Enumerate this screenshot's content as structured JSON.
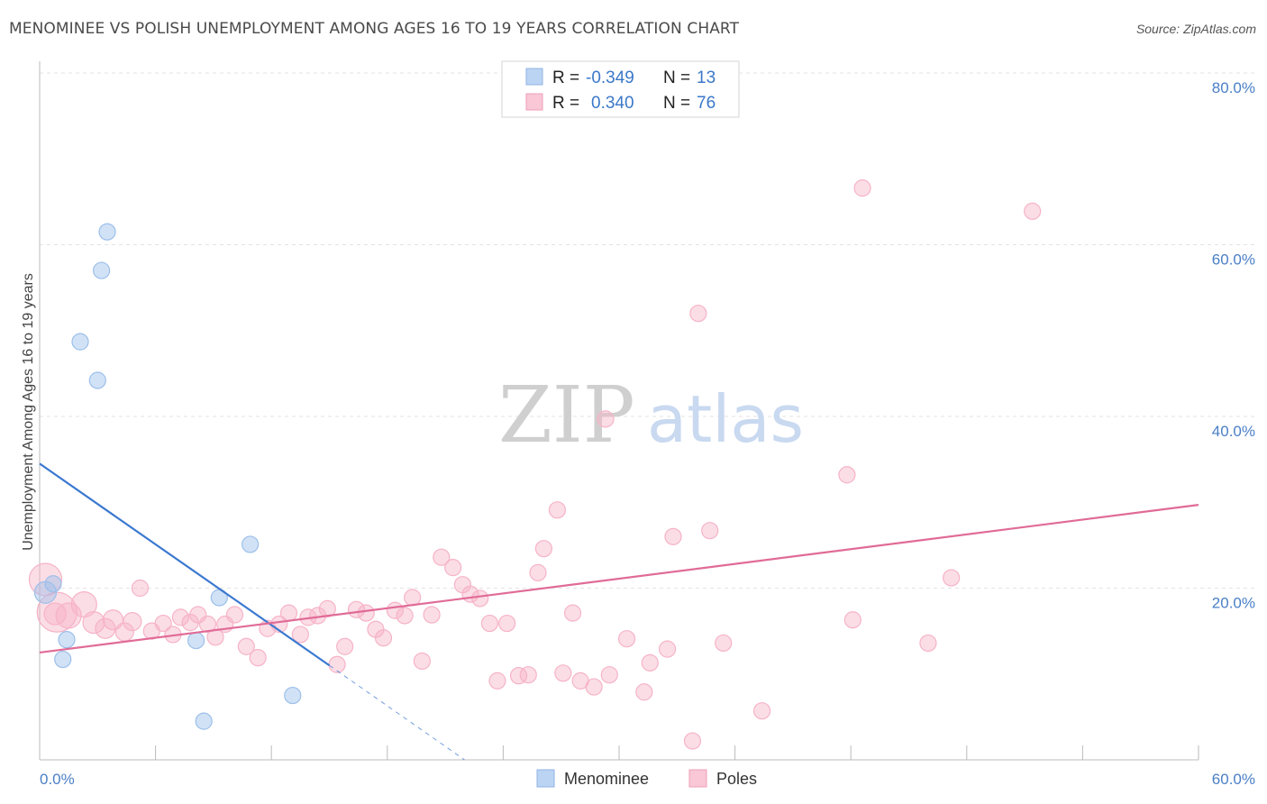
{
  "chart_data": {
    "type": "scatter",
    "title": "MENOMINEE VS POLISH UNEMPLOYMENT AMONG AGES 16 TO 19 YEARS CORRELATION CHART",
    "source": "Source: ZipAtlas.com",
    "xlabel": "",
    "ylabel": "Unemployment Among Ages 16 to 19 years",
    "xlim": [
      0,
      60
    ],
    "ylim": [
      0,
      80
    ],
    "x_tick_labels": [
      "0.0%",
      "60.0%"
    ],
    "y_tick_labels": [
      "20.0%",
      "40.0%",
      "60.0%",
      "80.0%"
    ],
    "y_ticks": [
      20,
      40,
      60,
      80
    ],
    "watermark": {
      "zip": "ZIP",
      "atlas": "atlas"
    },
    "stats_legend": [
      {
        "r_label": "R =",
        "r_value": "-0.349",
        "n_label": "N =",
        "n_value": "13"
      },
      {
        "r_label": "R =",
        "r_value": "0.340",
        "n_label": "N =",
        "n_value": "76"
      }
    ],
    "series": [
      {
        "name": "Menominee",
        "color": "#9bbfea",
        "line_color": "#3a78d0",
        "trend": {
          "x0": 0,
          "y0": 34.5,
          "x1": 15.0,
          "y1": 11.0,
          "dash_to_x": 22.0,
          "dash_to_y": 0
        },
        "points": [
          {
            "x": 0.3,
            "y": 19.5,
            "s": 12
          },
          {
            "x": 0.7,
            "y": 20.5,
            "s": 9
          },
          {
            "x": 1.4,
            "y": 14.0,
            "s": 9
          },
          {
            "x": 1.2,
            "y": 11.7,
            "s": 9
          },
          {
            "x": 2.1,
            "y": 48.7,
            "s": 9
          },
          {
            "x": 3.0,
            "y": 44.2,
            "s": 9
          },
          {
            "x": 3.2,
            "y": 57.0,
            "s": 9
          },
          {
            "x": 3.5,
            "y": 61.5,
            "s": 9
          },
          {
            "x": 8.1,
            "y": 13.9,
            "s": 9
          },
          {
            "x": 8.5,
            "y": 4.5,
            "s": 9
          },
          {
            "x": 9.3,
            "y": 18.9,
            "s": 9
          },
          {
            "x": 10.9,
            "y": 25.1,
            "s": 9
          },
          {
            "x": 13.1,
            "y": 7.5,
            "s": 9
          }
        ]
      },
      {
        "name": "Poles",
        "color": "#f6b3c7",
        "line_color": "#e06b96",
        "trend": {
          "x0": 0,
          "y0": 12.5,
          "x1": 60,
          "y1": 29.7
        },
        "points": [
          {
            "x": 0.3,
            "y": 21.0,
            "s": 18
          },
          {
            "x": 0.9,
            "y": 17.2,
            "s": 22
          },
          {
            "x": 1.5,
            "y": 16.8,
            "s": 14
          },
          {
            "x": 2.3,
            "y": 18.1,
            "s": 14
          },
          {
            "x": 2.8,
            "y": 16.0,
            "s": 12
          },
          {
            "x": 3.4,
            "y": 15.3,
            "s": 11
          },
          {
            "x": 3.8,
            "y": 16.3,
            "s": 11
          },
          {
            "x": 4.4,
            "y": 14.9,
            "s": 10
          },
          {
            "x": 4.8,
            "y": 16.1,
            "s": 10
          },
          {
            "x": 5.2,
            "y": 20.0,
            "s": 9
          },
          {
            "x": 5.8,
            "y": 15.0,
            "s": 9
          },
          {
            "x": 6.4,
            "y": 15.9,
            "s": 9
          },
          {
            "x": 6.9,
            "y": 14.6,
            "s": 9
          },
          {
            "x": 7.3,
            "y": 16.6,
            "s": 9
          },
          {
            "x": 7.8,
            "y": 16.0,
            "s": 9
          },
          {
            "x": 8.2,
            "y": 16.9,
            "s": 9
          },
          {
            "x": 8.7,
            "y": 15.8,
            "s": 9
          },
          {
            "x": 9.1,
            "y": 14.3,
            "s": 9
          },
          {
            "x": 9.6,
            "y": 15.8,
            "s": 9
          },
          {
            "x": 10.1,
            "y": 16.9,
            "s": 9
          },
          {
            "x": 10.7,
            "y": 13.2,
            "s": 9
          },
          {
            "x": 11.3,
            "y": 11.9,
            "s": 9
          },
          {
            "x": 11.8,
            "y": 15.3,
            "s": 9
          },
          {
            "x": 12.4,
            "y": 15.8,
            "s": 9
          },
          {
            "x": 12.9,
            "y": 17.1,
            "s": 9
          },
          {
            "x": 13.5,
            "y": 14.6,
            "s": 9
          },
          {
            "x": 13.9,
            "y": 16.6,
            "s": 9
          },
          {
            "x": 14.4,
            "y": 16.8,
            "s": 9
          },
          {
            "x": 14.9,
            "y": 17.6,
            "s": 9
          },
          {
            "x": 15.4,
            "y": 11.1,
            "s": 9
          },
          {
            "x": 15.8,
            "y": 13.2,
            "s": 9
          },
          {
            "x": 16.4,
            "y": 17.5,
            "s": 9
          },
          {
            "x": 16.9,
            "y": 17.1,
            "s": 9
          },
          {
            "x": 17.4,
            "y": 15.2,
            "s": 9
          },
          {
            "x": 17.8,
            "y": 14.2,
            "s": 9
          },
          {
            "x": 18.4,
            "y": 17.4,
            "s": 9
          },
          {
            "x": 18.9,
            "y": 16.8,
            "s": 9
          },
          {
            "x": 19.3,
            "y": 18.9,
            "s": 9
          },
          {
            "x": 19.8,
            "y": 11.5,
            "s": 9
          },
          {
            "x": 20.3,
            "y": 16.9,
            "s": 9
          },
          {
            "x": 20.8,
            "y": 23.6,
            "s": 9
          },
          {
            "x": 21.4,
            "y": 22.4,
            "s": 9
          },
          {
            "x": 21.9,
            "y": 20.4,
            "s": 9
          },
          {
            "x": 22.3,
            "y": 19.3,
            "s": 9
          },
          {
            "x": 22.8,
            "y": 18.8,
            "s": 9
          },
          {
            "x": 23.3,
            "y": 15.9,
            "s": 9
          },
          {
            "x": 23.7,
            "y": 9.2,
            "s": 9
          },
          {
            "x": 24.2,
            "y": 15.9,
            "s": 9
          },
          {
            "x": 24.8,
            "y": 9.8,
            "s": 9
          },
          {
            "x": 25.3,
            "y": 9.9,
            "s": 9
          },
          {
            "x": 25.8,
            "y": 21.8,
            "s": 9
          },
          {
            "x": 26.1,
            "y": 24.6,
            "s": 9
          },
          {
            "x": 26.8,
            "y": 29.1,
            "s": 9
          },
          {
            "x": 27.1,
            "y": 10.1,
            "s": 9
          },
          {
            "x": 27.6,
            "y": 17.1,
            "s": 9
          },
          {
            "x": 28.0,
            "y": 9.2,
            "s": 9
          },
          {
            "x": 28.7,
            "y": 8.5,
            "s": 9
          },
          {
            "x": 29.3,
            "y": 39.7,
            "s": 9
          },
          {
            "x": 29.5,
            "y": 9.9,
            "s": 9
          },
          {
            "x": 30.4,
            "y": 14.1,
            "s": 9
          },
          {
            "x": 31.3,
            "y": 7.9,
            "s": 9
          },
          {
            "x": 31.6,
            "y": 11.3,
            "s": 9
          },
          {
            "x": 32.5,
            "y": 12.9,
            "s": 9
          },
          {
            "x": 32.8,
            "y": 26.0,
            "s": 9
          },
          {
            "x": 33.8,
            "y": 2.2,
            "s": 9
          },
          {
            "x": 34.1,
            "y": 52.0,
            "s": 9
          },
          {
            "x": 34.7,
            "y": 26.7,
            "s": 9
          },
          {
            "x": 35.4,
            "y": 13.6,
            "s": 9
          },
          {
            "x": 37.4,
            "y": 5.7,
            "s": 9
          },
          {
            "x": 41.8,
            "y": 33.2,
            "s": 9
          },
          {
            "x": 42.1,
            "y": 16.3,
            "s": 9
          },
          {
            "x": 42.6,
            "y": 66.6,
            "s": 9
          },
          {
            "x": 46.0,
            "y": 13.6,
            "s": 9
          },
          {
            "x": 47.2,
            "y": 21.2,
            "s": 9
          },
          {
            "x": 51.4,
            "y": 63.9,
            "s": 9
          },
          {
            "x": 0.8,
            "y": 17.0,
            "s": 12
          }
        ]
      }
    ]
  }
}
